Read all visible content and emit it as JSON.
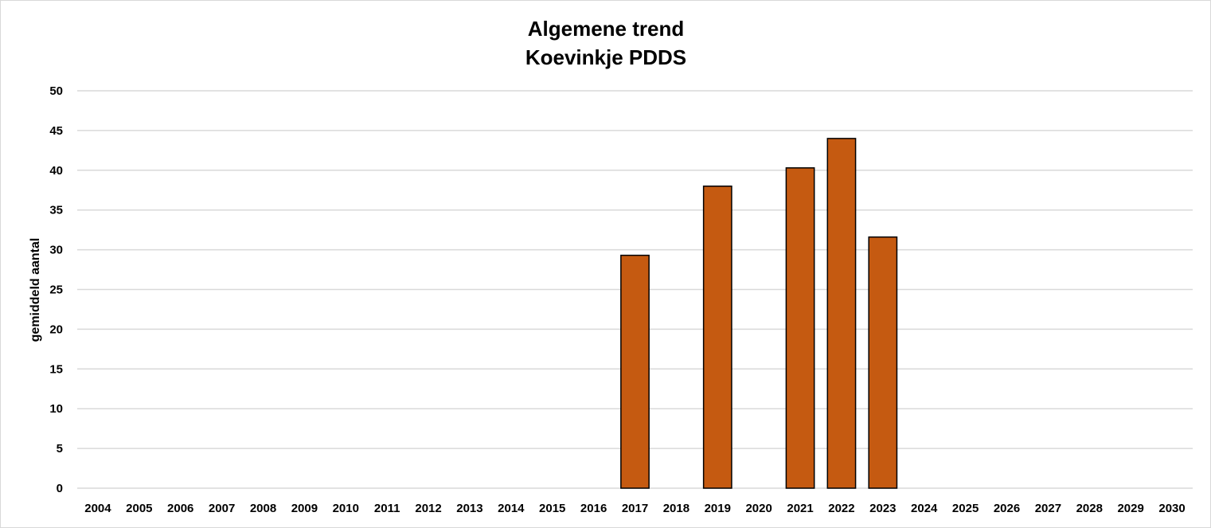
{
  "chart_data": {
    "type": "bar",
    "title": [
      "Algemene trend",
      "Koevinkje PDDS"
    ],
    "xlabel": "",
    "ylabel": "gemiddeld aantal",
    "ylim": [
      0,
      50
    ],
    "yticks": [
      0,
      5,
      10,
      15,
      20,
      25,
      30,
      35,
      40,
      45,
      50
    ],
    "grid": true,
    "legend": "none",
    "colors": {
      "bar_fill": "#C55A11",
      "bar_stroke": "#000000",
      "grid": "#d9d9d9"
    },
    "categories": [
      "2004",
      "2005",
      "2006",
      "2007",
      "2008",
      "2009",
      "2010",
      "2011",
      "2012",
      "2013",
      "2014",
      "2015",
      "2016",
      "2017",
      "2018",
      "2019",
      "2020",
      "2021",
      "2022",
      "2023",
      "2024",
      "2025",
      "2026",
      "2027",
      "2028",
      "2029",
      "2030"
    ],
    "values": [
      null,
      null,
      null,
      null,
      null,
      null,
      null,
      null,
      null,
      null,
      null,
      null,
      null,
      29.3,
      null,
      38.0,
      null,
      40.3,
      44.0,
      31.6,
      null,
      null,
      null,
      null,
      null,
      null,
      null
    ]
  }
}
